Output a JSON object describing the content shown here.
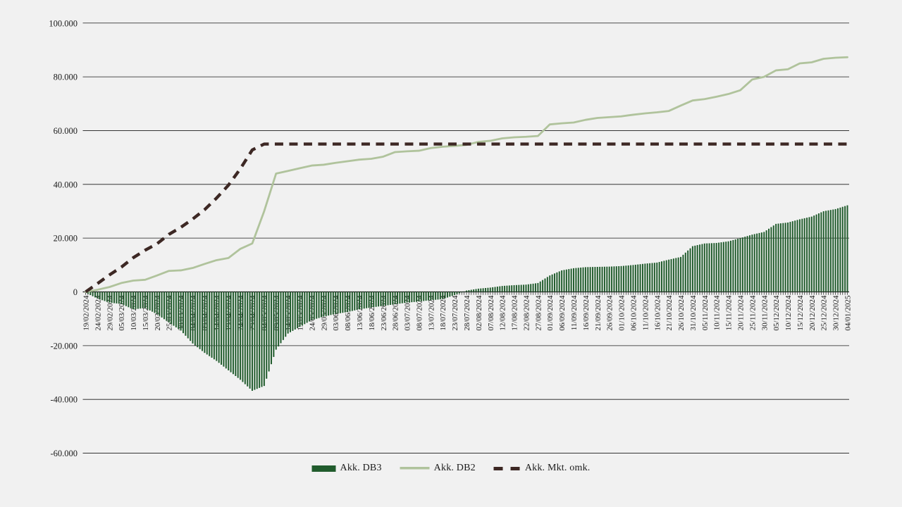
{
  "chart_data": {
    "type": "combo",
    "title": "",
    "xlabel": "",
    "ylabel": "",
    "grid": true,
    "legend_position": "bottom-center",
    "background_color": "#f1f1f1",
    "axis_text_color": "#1a1a1a",
    "ylim": [
      -60000,
      100000
    ],
    "y_ticks": [
      {
        "value": 100000,
        "label": "100.000"
      },
      {
        "value": 80000,
        "label": "80.000"
      },
      {
        "value": 60000,
        "label": "60.000"
      },
      {
        "value": 40000,
        "label": "40.000"
      },
      {
        "value": 20000,
        "label": "20.000"
      },
      {
        "value": 0,
        "label": "0"
      },
      {
        "value": -20000,
        "label": "-20.000"
      },
      {
        "value": -40000,
        "label": "-40.000"
      },
      {
        "value": -60000,
        "label": "-60.000"
      }
    ],
    "label_interval_days": 5,
    "bar_frequency": "daily",
    "x_labels": [
      "19/02/2024",
      "24/02/2024",
      "29/02/2024",
      "05/03/2024",
      "10/03/2024",
      "15/03/2024",
      "20/03/2024",
      "25/03/2024",
      "30/03/2024",
      "04/04/2024",
      "09/04/2024",
      "14/04/2024",
      "19/04/2024",
      "24/04/2024",
      "29/04/2024",
      "04/05/2024",
      "09/05/2024",
      "14/05/2024",
      "19/05/2024",
      "24/05/2024",
      "29/05/2024",
      "03/06/2024",
      "08/06/2024",
      "13/06/2024",
      "18/06/2024",
      "23/06/2024",
      "28/06/2024",
      "03/07/2024",
      "08/07/2024",
      "13/07/2024",
      "18/07/2024",
      "23/07/2024",
      "28/07/2024",
      "02/08/2024",
      "07/08/2024",
      "12/08/2024",
      "17/08/2024",
      "22/08/2024",
      "27/08/2024",
      "01/09/2024",
      "06/09/2024",
      "11/09/2024",
      "16/09/2024",
      "21/09/2024",
      "26/09/2024",
      "01/10/2024",
      "06/10/2024",
      "11/10/2024",
      "16/10/2024",
      "21/10/2024",
      "26/10/2024",
      "31/10/2024",
      "05/11/2024",
      "10/11/2024",
      "15/11/2024",
      "20/11/2024",
      "25/11/2024",
      "30/11/2024",
      "05/12/2024",
      "10/12/2024",
      "15/12/2024",
      "20/12/2024",
      "25/12/2024",
      "30/12/2024",
      "04/01/2025"
    ],
    "series": [
      {
        "name": "Akk. DB3",
        "render": "bar",
        "color": "#215c2d",
        "values": [
          -300,
          -2500,
          -4000,
          -4500,
          -6500,
          -6000,
          -8300,
          -11400,
          -14400,
          -19200,
          -22700,
          -25700,
          -29200,
          -32700,
          -36800,
          -35000,
          -21500,
          -15500,
          -13000,
          -10500,
          -9200,
          -8200,
          -7500,
          -6500,
          -5800,
          -5200,
          -4600,
          -4000,
          -3600,
          -3100,
          -2700,
          -1200,
          500,
          1200,
          1600,
          2200,
          2500,
          2700,
          3300,
          6100,
          8000,
          8800,
          9200,
          9300,
          9400,
          9600,
          10000,
          10500,
          10900,
          12000,
          13000,
          17000,
          18000,
          18200,
          18800,
          20000,
          21300,
          22300,
          25300,
          25800,
          27000,
          28000,
          30000,
          30800,
          32200
        ]
      },
      {
        "name": "Akk. DB2",
        "render": "line",
        "color": "#b0c39c",
        "values": [
          0,
          800,
          1800,
          3300,
          4200,
          4500,
          6100,
          7800,
          8000,
          8900,
          10400,
          11800,
          12600,
          16000,
          18000,
          30000,
          44000,
          45000,
          46000,
          47000,
          47300,
          48000,
          48600,
          49200,
          49500,
          50300,
          52000,
          52300,
          52500,
          53500,
          54000,
          54300,
          54700,
          55800,
          56200,
          57100,
          57500,
          57700,
          58000,
          62300,
          62700,
          63000,
          64000,
          64700,
          65000,
          65300,
          65900,
          66400,
          66800,
          67300,
          69300,
          71200,
          71700,
          72600,
          73600,
          75000,
          79000,
          80000,
          82400,
          82800,
          85000,
          85400,
          86700,
          87100,
          87300
        ]
      },
      {
        "name": "Akk. Mkt. omk.",
        "render": "dashed-line",
        "color": "#3d2824",
        "values": [
          0,
          3100,
          6300,
          9200,
          12700,
          15500,
          17900,
          21400,
          24000,
          27100,
          30600,
          34900,
          39700,
          45800,
          52800,
          55000,
          55000,
          55000,
          55000,
          55000,
          55000,
          55000,
          55000,
          55000,
          55000,
          55000,
          55000,
          55000,
          55000,
          55000,
          55000,
          55000,
          55000,
          55000,
          55000,
          55000,
          55000,
          55000,
          55000,
          55000,
          55000,
          55000,
          55000,
          55000,
          55000,
          55000,
          55000,
          55000,
          55000,
          55000,
          55000,
          55000,
          55000,
          55000,
          55000,
          55000,
          55000,
          55000,
          55000,
          55000,
          55000,
          55000,
          55000,
          55000,
          55000
        ]
      }
    ]
  },
  "legend": {
    "items": [
      {
        "label": "Akk. DB3"
      },
      {
        "label": "Akk. DB2"
      },
      {
        "label": "Akk. Mkt. omk."
      }
    ]
  }
}
